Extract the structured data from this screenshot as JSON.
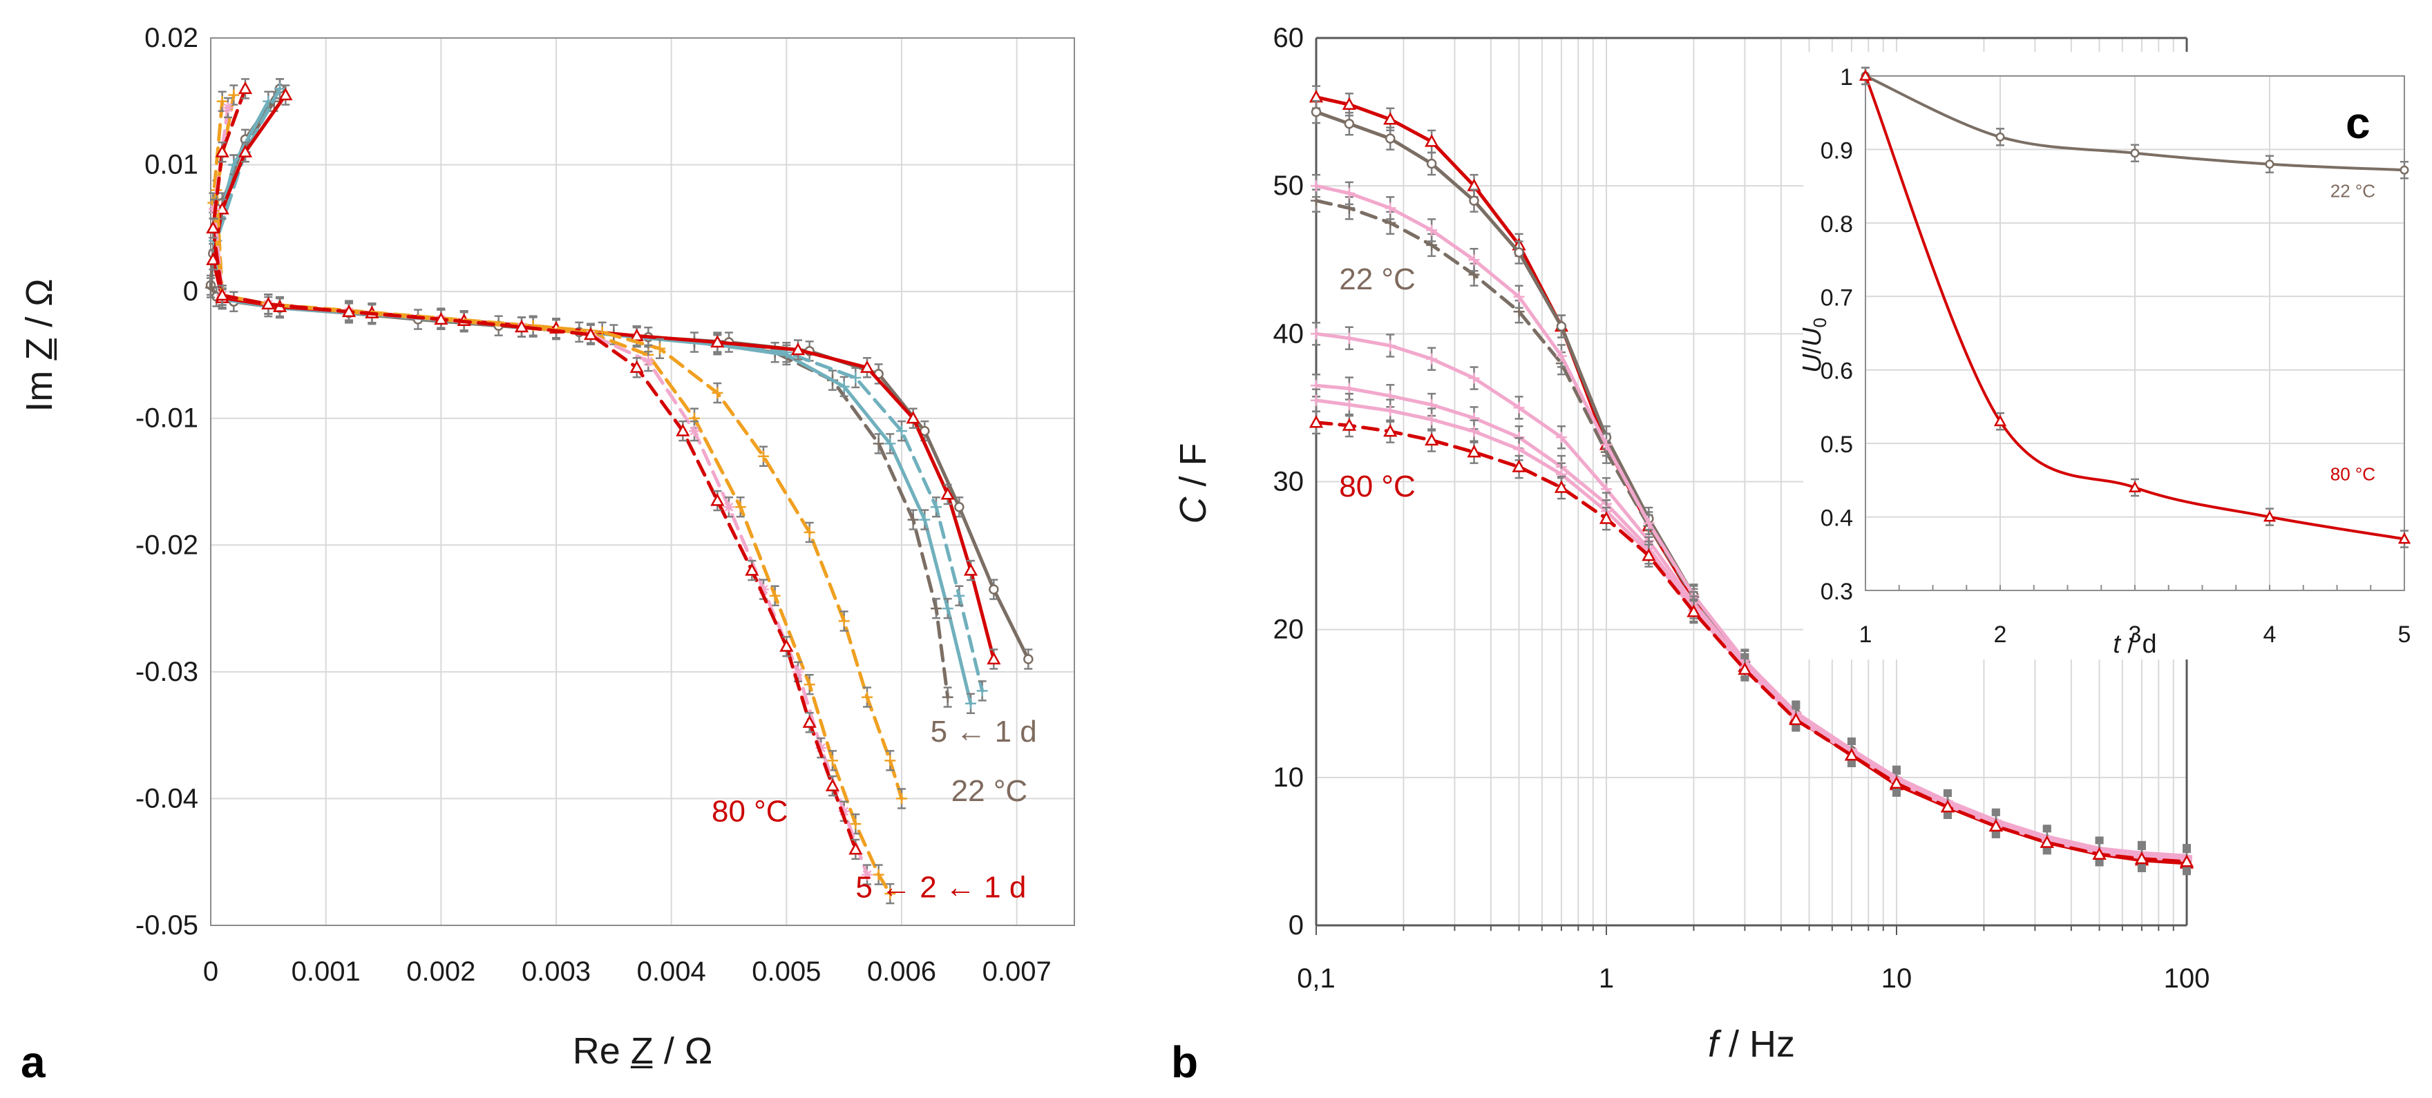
{
  "chart_data": [
    {
      "panel": "a",
      "type": "line",
      "xlabel": "Re Z̲ / Ω",
      "ylabel": "Im Z̲ / Ω",
      "xlim": [
        0,
        0.0075
      ],
      "ylim": [
        -0.05,
        0.02
      ],
      "xticks": [
        "0",
        "0.001",
        "0.002",
        "0.003",
        "0.004",
        "0.005",
        "0.006",
        "0.007"
      ],
      "yticks": [
        "0.02",
        "0.01",
        "0",
        "-0.01",
        "-0.02",
        "-0.03",
        "-0.04",
        "-0.05"
      ],
      "grid": true,
      "annotations": [
        {
          "text": "5 ← 1 d",
          "color": "#7f6a5e",
          "x": 0.00625,
          "y": -0.0355
        },
        {
          "text": "22 °C",
          "color": "#7f6a5e",
          "x": 0.00643,
          "y": -0.0402
        },
        {
          "text": "80 °C",
          "color": "#cc0000",
          "x": 0.00435,
          "y": -0.0418
        },
        {
          "text": "5 ← 2 ← 1 d",
          "color": "#cc0000",
          "x": 0.0056,
          "y": -0.0478
        }
      ],
      "series": [
        {
          "color": "#7b6e64",
          "dash": false,
          "marker": "circle",
          "x": [
            0.0006,
            0.0003,
            0.0001,
            2e-05,
            0,
            5e-05,
            0.0002,
            0.0006,
            0.0012,
            0.0018,
            0.0025,
            0.0032,
            0.0038,
            0.0045,
            0.0052,
            0.0058,
            0.0062,
            0.0065,
            0.0068,
            0.0071
          ],
          "y": [
            0.016,
            0.012,
            0.007,
            0.003,
            0.0005,
            -0.0004,
            -0.0008,
            -0.0013,
            -0.0017,
            -0.0022,
            -0.0027,
            -0.0032,
            -0.0036,
            -0.004,
            -0.0047,
            -0.0065,
            -0.011,
            -0.017,
            -0.0235,
            -0.029
          ]
        },
        {
          "color": "#7b6e64",
          "dash": true,
          "marker": "plus",
          "x": [
            0.00055,
            0.0002,
            3e-05,
            0,
            0.0001,
            0.0005,
            0.0012,
            0.002,
            0.0028,
            0.0035,
            0.0042,
            0.0049,
            0.0054,
            0.0058,
            0.0061,
            0.0063,
            0.0064
          ],
          "y": [
            0.015,
            0.01,
            0.004,
            0.0003,
            -0.0006,
            -0.0012,
            -0.0016,
            -0.0022,
            -0.0028,
            -0.0034,
            -0.004,
            -0.0048,
            -0.007,
            -0.012,
            -0.018,
            -0.025,
            -0.032
          ]
        },
        {
          "color": "#70b0bd",
          "dash": false,
          "marker": "plus",
          "x": [
            0.0005,
            0.0002,
            3e-05,
            0.0001,
            0.0006,
            0.0014,
            0.0022,
            0.003,
            0.0037,
            0.0044,
            0.005,
            0.0055,
            0.0059,
            0.0062,
            0.0064,
            0.0066
          ],
          "y": [
            0.015,
            0.01,
            0.004,
            -0.0006,
            -0.0013,
            -0.0018,
            -0.0024,
            -0.003,
            -0.0036,
            -0.0042,
            -0.005,
            -0.0075,
            -0.012,
            -0.018,
            -0.025,
            -0.0325
          ]
        },
        {
          "color": "#70b0bd",
          "dash": true,
          "marker": "plus",
          "x": [
            0.0006,
            0.0003,
            5e-05,
            0.0001,
            0.0006,
            0.0014,
            0.0022,
            0.003,
            0.0037,
            0.0044,
            0.005,
            0.0056,
            0.006,
            0.0063,
            0.0065,
            0.0067
          ],
          "y": [
            0.016,
            0.011,
            0.004,
            -0.0005,
            -0.0012,
            -0.0017,
            -0.0023,
            -0.0029,
            -0.0035,
            -0.0041,
            -0.0048,
            -0.0068,
            -0.011,
            -0.017,
            -0.024,
            -0.0315
          ]
        },
        {
          "color": "#d40000",
          "dash": false,
          "marker": "triangle",
          "x": [
            0.00065,
            0.0003,
            0.0001,
            2e-05,
            0.0001,
            0.0006,
            0.0014,
            0.0022,
            0.003,
            0.0037,
            0.0044,
            0.0051,
            0.0057,
            0.0061,
            0.0064,
            0.0066,
            0.0068
          ],
          "y": [
            0.0155,
            0.011,
            0.0065,
            0.0025,
            -0.0005,
            -0.0012,
            -0.0017,
            -0.0023,
            -0.0029,
            -0.0035,
            -0.004,
            -0.0046,
            -0.006,
            -0.01,
            -0.016,
            -0.022,
            -0.029
          ]
        },
        {
          "color": "#f0a020",
          "dash": true,
          "marker": "plus",
          "x": [
            0.0002,
            5e-05,
            0.0001,
            0.0005,
            0.0012,
            0.002,
            0.0028,
            0.0034,
            0.0039,
            0.0044,
            0.0048,
            0.0052,
            0.0055,
            0.0057,
            0.0059,
            0.006
          ],
          "y": [
            0.0155,
            0.008,
            -0.0003,
            -0.001,
            -0.0015,
            -0.0021,
            -0.0027,
            -0.0032,
            -0.0045,
            -0.008,
            -0.013,
            -0.019,
            -0.026,
            -0.032,
            -0.037,
            -0.04
          ]
        },
        {
          "color": "#f0a020",
          "dash": true,
          "marker": "plus",
          "x": [
            0.0001,
            2e-05,
            0.0001,
            0.0005,
            0.0012,
            0.002,
            0.0027,
            0.0033,
            0.0038,
            0.0042,
            0.0046,
            0.0049,
            0.0052,
            0.0054,
            0.0056,
            0.0058,
            0.0059
          ],
          "y": [
            0.015,
            0.007,
            -0.0003,
            -0.001,
            -0.0016,
            -0.0022,
            -0.0028,
            -0.0033,
            -0.005,
            -0.01,
            -0.017,
            -0.024,
            -0.031,
            -0.037,
            -0.042,
            -0.046,
            -0.0475
          ]
        },
        {
          "color": "#f2a8cc",
          "dash": true,
          "marker": "star",
          "x": [
            0.00015,
            3e-05,
            0.0001,
            0.0005,
            0.0012,
            0.002,
            0.0027,
            0.0033,
            0.0038,
            0.0042,
            0.0045,
            0.0048,
            0.0051,
            0.0053,
            0.0055,
            0.0057
          ],
          "y": [
            0.0145,
            0.0065,
            -0.0003,
            -0.001,
            -0.0016,
            -0.0022,
            -0.0028,
            -0.0034,
            -0.0055,
            -0.011,
            -0.017,
            -0.0235,
            -0.03,
            -0.036,
            -0.041,
            -0.046
          ]
        },
        {
          "color": "#d40000",
          "dash": true,
          "marker": "triangle",
          "x": [
            0.0003,
            0.0001,
            2e-05,
            0.0001,
            0.0005,
            0.0012,
            0.002,
            0.0027,
            0.0033,
            0.0037,
            0.0041,
            0.0044,
            0.0047,
            0.005,
            0.0052,
            0.0054,
            0.0056
          ],
          "y": [
            0.016,
            0.011,
            0.005,
            -0.0003,
            -0.001,
            -0.0016,
            -0.0022,
            -0.0028,
            -0.0034,
            -0.006,
            -0.011,
            -0.0165,
            -0.022,
            -0.028,
            -0.034,
            -0.039,
            -0.044
          ]
        }
      ]
    },
    {
      "panel": "b",
      "type": "line",
      "xlabel": "f / Hz",
      "ylabel": "C / F",
      "xscale": "log",
      "xlim": [
        0.1,
        100
      ],
      "ylim": [
        0,
        60
      ],
      "xticks": [
        {
          "value": 0.1,
          "label": "0,1"
        },
        {
          "value": 1,
          "label": "1"
        },
        {
          "value": 10,
          "label": "10"
        },
        {
          "value": 100,
          "label": "100"
        }
      ],
      "yticks": [
        "0",
        "10",
        "20",
        "30",
        "40",
        "50",
        "60"
      ],
      "grid": true,
      "annotations": [
        {
          "text": "22 °C",
          "color": "#7f6a5e",
          "x": 0.12,
          "y": 43
        },
        {
          "text": "80 °C",
          "color": "#cc0000",
          "x": 0.12,
          "y": 29
        }
      ],
      "series": [
        {
          "color": "#d40000",
          "dash": false,
          "marker": "triangle",
          "x": [
            0.1,
            0.13,
            0.18,
            0.25,
            0.35,
            0.5,
            0.7,
            1.0,
            1.4,
            2.0,
            3.0,
            4.5,
            7,
            10,
            15,
            22,
            33,
            50,
            70,
            100
          ],
          "y": [
            56,
            55.5,
            54.5,
            53,
            50,
            46,
            40.5,
            32.5,
            27,
            22,
            17.5,
            14,
            11.5,
            9.5,
            8,
            6.7,
            5.6,
            4.8,
            4.4,
            4.2
          ]
        },
        {
          "color": "#7b6e64",
          "dash": false,
          "marker": "circle",
          "x": [
            0.1,
            0.13,
            0.18,
            0.25,
            0.35,
            0.5,
            0.7,
            1.0,
            1.4,
            2.0,
            3.0,
            4.5,
            7,
            10,
            15,
            22,
            33,
            50,
            70,
            100
          ],
          "y": [
            55,
            54.2,
            53.2,
            51.5,
            49,
            45.5,
            40.5,
            33,
            27.5,
            22.3,
            17.8,
            14.3,
            11.8,
            9.8,
            8.2,
            6.9,
            5.8,
            5.0,
            4.6,
            4.4
          ]
        },
        {
          "color": "#7b6e64",
          "dash": true,
          "marker": "plus",
          "x": [
            0.1,
            0.13,
            0.18,
            0.25,
            0.35,
            0.5,
            0.7,
            1.0,
            1.4,
            2.0,
            3.0,
            4.5,
            7,
            10,
            15,
            22,
            33,
            50,
            70,
            100
          ],
          "y": [
            49,
            48.5,
            47.5,
            46,
            44,
            41.5,
            38,
            32,
            27,
            22.2,
            17.8,
            14.3,
            11.8,
            9.9,
            8.3,
            7.0,
            5.9,
            5.1,
            4.8,
            4.6
          ]
        },
        {
          "color": "#f2a8cc",
          "dash": false,
          "marker": "plus",
          "x": [
            0.1,
            0.13,
            0.18,
            0.25,
            0.35,
            0.5,
            0.7,
            1.0,
            1.4,
            2.0,
            3.0,
            4.5,
            7,
            10,
            15,
            22,
            33,
            50,
            70,
            100
          ],
          "y": [
            50,
            49.5,
            48.5,
            47,
            45,
            42.5,
            38.5,
            32.5,
            27.2,
            22.3,
            17.9,
            14.4,
            11.9,
            10.0,
            8.4,
            7.1,
            6.0,
            5.2,
            4.9,
            4.7
          ]
        },
        {
          "color": "#f2a8cc",
          "dash": false,
          "marker": "plus",
          "x": [
            0.1,
            0.13,
            0.18,
            0.25,
            0.35,
            0.5,
            0.7,
            1.0,
            1.4,
            2.0,
            3.0,
            4.5,
            7,
            10,
            15,
            22,
            33,
            50,
            70,
            100
          ],
          "y": [
            40,
            39.7,
            39.2,
            38.3,
            37,
            35,
            33,
            29.5,
            26,
            21.8,
            17.6,
            14.2,
            11.8,
            9.9,
            8.3,
            7.0,
            5.9,
            5.1,
            4.8,
            4.6
          ]
        },
        {
          "color": "#f2a8cc",
          "dash": false,
          "marker": "plus",
          "x": [
            0.1,
            0.13,
            0.18,
            0.25,
            0.35,
            0.5,
            0.7,
            1.0,
            1.4,
            2.0,
            3.0,
            4.5,
            7,
            10,
            15,
            22,
            33,
            50,
            70,
            100
          ],
          "y": [
            36.5,
            36.3,
            35.8,
            35.2,
            34.3,
            33,
            31,
            28.5,
            25.5,
            21.5,
            17.5,
            14.1,
            11.7,
            9.8,
            8.2,
            6.9,
            5.8,
            5.0,
            4.7,
            4.5
          ]
        },
        {
          "color": "#f2a8cc",
          "dash": false,
          "marker": "plus",
          "x": [
            0.1,
            0.13,
            0.18,
            0.25,
            0.35,
            0.5,
            0.7,
            1.0,
            1.4,
            2.0,
            3.0,
            4.5,
            7,
            10,
            15,
            22,
            33,
            50,
            70,
            100
          ],
          "y": [
            35.5,
            35.2,
            34.8,
            34.2,
            33.4,
            32.2,
            30.5,
            28,
            25.2,
            21.3,
            17.4,
            14.0,
            11.6,
            9.7,
            8.1,
            6.8,
            5.7,
            4.9,
            4.6,
            4.4
          ]
        },
        {
          "color": "#d40000",
          "dash": true,
          "marker": "triangle",
          "x": [
            0.1,
            0.13,
            0.18,
            0.25,
            0.35,
            0.5,
            0.7,
            1.0,
            1.4,
            2.0,
            3.0,
            4.5,
            7,
            10,
            15,
            22,
            33,
            50,
            70,
            100
          ],
          "y": [
            34,
            33.8,
            33.4,
            32.8,
            32,
            31,
            29.6,
            27.5,
            25,
            21.2,
            17.3,
            13.9,
            11.5,
            9.6,
            8.0,
            6.7,
            5.6,
            4.8,
            4.5,
            4.3
          ]
        }
      ]
    },
    {
      "panel": "c",
      "type": "line",
      "xlabel": "t / d",
      "ylabel": "U/U₀",
      "xlim": [
        1,
        5
      ],
      "ylim": [
        0.3,
        1.0
      ],
      "xticks": [
        "1",
        "2",
        "3",
        "4",
        "5"
      ],
      "yticks": [
        "0.3",
        "0.4",
        "0.5",
        "0.6",
        "0.7",
        "0.8",
        "0.9",
        "1"
      ],
      "grid": true,
      "annotations": [
        {
          "text": "22 °C",
          "color": "#7f6a5e",
          "x": 4.45,
          "y": 0.835
        },
        {
          "text": "80 °C",
          "color": "#cc0000",
          "x": 4.45,
          "y": 0.45
        }
      ],
      "series": [
        {
          "color": "#7b6e64",
          "marker": "circle",
          "x": [
            1,
            2,
            3,
            4,
            5
          ],
          "y": [
            1.0,
            0.917,
            0.895,
            0.88,
            0.872
          ]
        },
        {
          "color": "#d40000",
          "marker": "triangle",
          "x": [
            1,
            2,
            3,
            4,
            5
          ],
          "y": [
            1.0,
            0.53,
            0.44,
            0.4,
            0.37
          ]
        }
      ]
    }
  ],
  "labels": {
    "panel_a": "a",
    "panel_b": "b",
    "panel_c": "c"
  },
  "axes": {
    "a_xlabel": "Re Z̲ / Ω",
    "a_ylabel": "Im Z̲ / Ω",
    "b_xlabel_italic": "f",
    "b_xlabel_rest": " / Hz",
    "b_ylabel_italic": "C",
    "b_ylabel_rest": " / F",
    "c_xlabel_italic": "t",
    "c_xlabel_rest": " / d",
    "c_ylabel_u": "U",
    "c_ylabel_sep": "/",
    "c_ylabel_u0": "U",
    "c_ylabel_sub": "0"
  }
}
